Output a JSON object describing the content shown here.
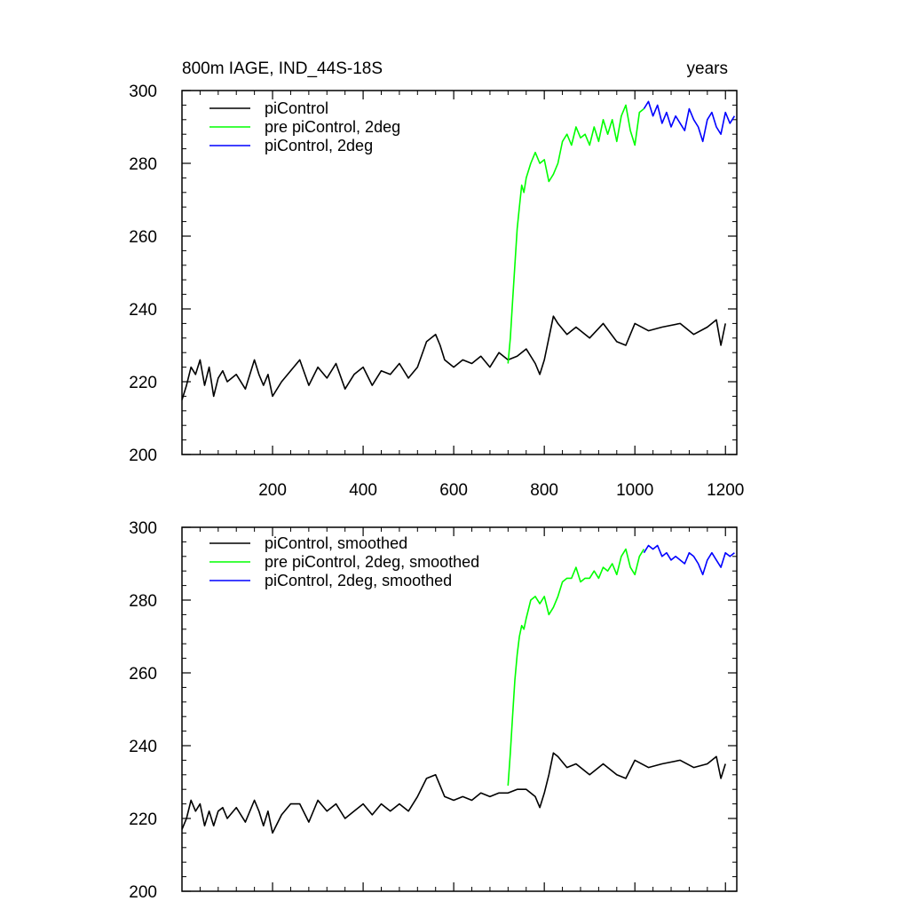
{
  "figure": {
    "title_left": "800m IAGE, IND_44S-18S",
    "title_right": "years"
  },
  "chart_data": [
    {
      "type": "line",
      "title": "800m IAGE, IND_44S-18S",
      "xlabel": "years",
      "ylabel": "",
      "xlim": [
        0,
        1225
      ],
      "ylim": [
        200,
        300
      ],
      "x_ticks": [
        200,
        400,
        600,
        800,
        1000,
        1200
      ],
      "x_tick_labels": [
        "200",
        "400",
        "600",
        "800",
        "1000",
        "1200"
      ],
      "y_ticks": [
        200,
        220,
        240,
        260,
        280,
        300
      ],
      "y_tick_labels": [
        "200",
        "220",
        "240",
        "260",
        "280",
        "300"
      ],
      "grid": false,
      "legend_position": "top-left",
      "series": [
        {
          "name": "piControl",
          "color": "#000000",
          "x": [
            0,
            10,
            20,
            30,
            40,
            50,
            60,
            70,
            80,
            90,
            100,
            120,
            140,
            160,
            170,
            180,
            190,
            200,
            220,
            240,
            260,
            280,
            300,
            320,
            340,
            360,
            380,
            400,
            420,
            440,
            460,
            480,
            500,
            520,
            540,
            560,
            570,
            580,
            600,
            620,
            640,
            660,
            680,
            700,
            720,
            740,
            760,
            780,
            790,
            800,
            810,
            820,
            830,
            850,
            870,
            900,
            930,
            960,
            980,
            1000,
            1030,
            1060,
            1100,
            1130,
            1160,
            1180,
            1190,
            1200
          ],
          "values": [
            215,
            219,
            224,
            222,
            226,
            219,
            224,
            216,
            221,
            223,
            220,
            222,
            218,
            226,
            222,
            219,
            222,
            216,
            220,
            223,
            226,
            219,
            224,
            221,
            225,
            218,
            222,
            224,
            219,
            223,
            222,
            225,
            221,
            224,
            231,
            233,
            230,
            226,
            224,
            226,
            225,
            227,
            224,
            228,
            226,
            227,
            229,
            225,
            222,
            226,
            232,
            238,
            236,
            233,
            235,
            232,
            236,
            231,
            230,
            236,
            234,
            235,
            236,
            233,
            235,
            237,
            230,
            236
          ]
        },
        {
          "name": "pre piControl, 2deg",
          "color": "#00ff00",
          "x": [
            720,
            725,
            730,
            735,
            740,
            745,
            750,
            755,
            760,
            770,
            780,
            790,
            800,
            810,
            820,
            830,
            840,
            850,
            860,
            870,
            880,
            890,
            900,
            910,
            920,
            930,
            940,
            950,
            960,
            970,
            980,
            990,
            1000,
            1010,
            1020
          ],
          "values": [
            225,
            232,
            242,
            252,
            262,
            268,
            274,
            272,
            276,
            280,
            283,
            280,
            281,
            275,
            277,
            280,
            286,
            288,
            285,
            290,
            287,
            288,
            285,
            290,
            286,
            292,
            288,
            292,
            286,
            293,
            296,
            289,
            285,
            294,
            295
          ]
        },
        {
          "name": "piControl, 2deg",
          "color": "#0000ff",
          "x": [
            1020,
            1030,
            1040,
            1050,
            1060,
            1070,
            1080,
            1090,
            1100,
            1110,
            1120,
            1130,
            1140,
            1150,
            1160,
            1170,
            1180,
            1190,
            1200,
            1210,
            1220
          ],
          "values": [
            295,
            297,
            293,
            296,
            291,
            294,
            290,
            293,
            291,
            289,
            295,
            292,
            290,
            286,
            292,
            294,
            290,
            288,
            294,
            291,
            293
          ]
        }
      ]
    },
    {
      "type": "line",
      "title": "",
      "xlabel": "",
      "ylabel": "",
      "xlim": [
        0,
        1225
      ],
      "ylim": [
        200,
        300
      ],
      "x_ticks": [
        200,
        400,
        600,
        800,
        1000,
        1200
      ],
      "x_tick_labels": [],
      "y_ticks": [
        200,
        220,
        240,
        260,
        280,
        300
      ],
      "y_tick_labels": [
        "200",
        "220",
        "240",
        "260",
        "280",
        "300"
      ],
      "grid": false,
      "legend_position": "top-left",
      "series": [
        {
          "name": "piControl, smoothed",
          "color": "#000000",
          "x": [
            0,
            10,
            20,
            30,
            40,
            50,
            60,
            70,
            80,
            90,
            100,
            120,
            140,
            160,
            170,
            180,
            190,
            200,
            220,
            240,
            260,
            280,
            300,
            320,
            340,
            360,
            380,
            400,
            420,
            440,
            460,
            480,
            500,
            520,
            540,
            560,
            570,
            580,
            600,
            620,
            640,
            660,
            680,
            700,
            720,
            740,
            760,
            780,
            790,
            800,
            810,
            820,
            830,
            850,
            870,
            900,
            930,
            960,
            980,
            1000,
            1030,
            1060,
            1100,
            1130,
            1160,
            1180,
            1190,
            1200
          ],
          "values": [
            217,
            220,
            225,
            222,
            224,
            218,
            222,
            218,
            222,
            223,
            220,
            223,
            219,
            225,
            222,
            218,
            222,
            216,
            221,
            224,
            224,
            219,
            225,
            222,
            224,
            220,
            222,
            224,
            221,
            224,
            222,
            224,
            222,
            226,
            231,
            232,
            229,
            226,
            225,
            226,
            225,
            227,
            226,
            227,
            227,
            228,
            228,
            226,
            223,
            227,
            232,
            238,
            237,
            234,
            235,
            232,
            235,
            232,
            231,
            236,
            234,
            235,
            236,
            234,
            235,
            237,
            231,
            235
          ]
        },
        {
          "name": "pre piControl, 2deg, smoothed",
          "color": "#00ff00",
          "x": [
            720,
            725,
            730,
            735,
            740,
            745,
            750,
            755,
            760,
            770,
            780,
            790,
            800,
            810,
            820,
            830,
            840,
            850,
            860,
            870,
            880,
            890,
            900,
            910,
            920,
            930,
            940,
            950,
            960,
            970,
            980,
            990,
            1000,
            1010,
            1020
          ],
          "values": [
            229,
            238,
            248,
            258,
            265,
            270,
            273,
            272,
            275,
            280,
            281,
            279,
            281,
            276,
            278,
            281,
            285,
            286,
            286,
            289,
            285,
            286,
            286,
            288,
            286,
            289,
            288,
            290,
            287,
            292,
            294,
            289,
            287,
            292,
            294
          ]
        },
        {
          "name": "piControl, 2deg, smoothed",
          "color": "#0000ff",
          "x": [
            1020,
            1030,
            1040,
            1050,
            1060,
            1070,
            1080,
            1090,
            1100,
            1110,
            1120,
            1130,
            1140,
            1150,
            1160,
            1170,
            1180,
            1190,
            1200,
            1210,
            1220
          ],
          "values": [
            293,
            295,
            294,
            295,
            292,
            293,
            291,
            292,
            291,
            290,
            293,
            292,
            290,
            287,
            291,
            293,
            291,
            289,
            293,
            292,
            293
          ]
        }
      ]
    }
  ]
}
